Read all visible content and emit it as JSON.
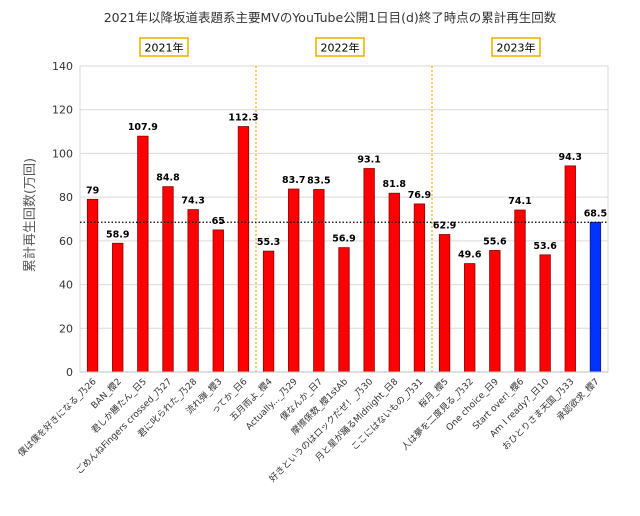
{
  "chart_data": {
    "type": "bar",
    "title": "2021年以降坂道表題系主要MVのYouTube公開1日目(d)終了時点の累計再生回数",
    "ylabel": "累計再生回数(万回)",
    "xlabel": "",
    "ylim": [
      0,
      140
    ],
    "yticks": [
      0,
      20,
      40,
      60,
      80,
      100,
      120,
      140
    ],
    "grid": true,
    "categories": [
      "僕は僕を好きになる_乃26",
      "BAN_櫻2",
      "君しか勝たん_日5",
      "ごめんねFingers crossed_乃27",
      "君に叱られた_乃28",
      "流れ弾_櫻3",
      "ってか_日6",
      "五月雨よ_櫻4",
      "Actually..._乃29",
      "僕なんか_日7",
      "摩擦係数_櫻1stAb",
      "好きというのはロックだぜ！_乃30",
      "月と星が踊るMidnight_日8",
      "ここにはないもの_乃31",
      "桜月_櫻5",
      "人は夢を二度見る_乃32",
      "One choice_日9",
      "Start over!_櫻6",
      "Am I ready?_日10",
      "おひとりさま天国_乃33",
      "承認欲求_櫻7"
    ],
    "values": [
      79,
      58.9,
      107.9,
      84.8,
      74.3,
      65,
      112.3,
      55.3,
      83.7,
      83.5,
      56.9,
      93.1,
      81.8,
      76.9,
      62.9,
      49.6,
      55.6,
      74.1,
      53.6,
      94.3,
      68.5
    ],
    "data_labels": [
      "79",
      "58.9",
      "107.9",
      "84.8",
      "74.3",
      "65",
      "112.3",
      "55.3",
      "83.7",
      "83.5",
      "56.9",
      "93.1",
      "81.8",
      "76.9",
      "62.9",
      "49.6",
      "55.6",
      "74.1",
      "53.6",
      "94.3",
      "68.5"
    ],
    "highlight_index": 20,
    "reference_line": 68.5,
    "groups": [
      {
        "label": "2021年",
        "start": 0,
        "end": 6
      },
      {
        "label": "2022年",
        "start": 7,
        "end": 13
      },
      {
        "label": "2023年",
        "start": 14,
        "end": 20
      }
    ],
    "colors": {
      "bar": "#ff0000",
      "bar_edge": "#8b0000",
      "highlight": "#0033ff",
      "reference_line": "#000000",
      "group_divider": "#f0b400",
      "group_box": "#f0b400",
      "grid": "#d9d9d9"
    }
  }
}
